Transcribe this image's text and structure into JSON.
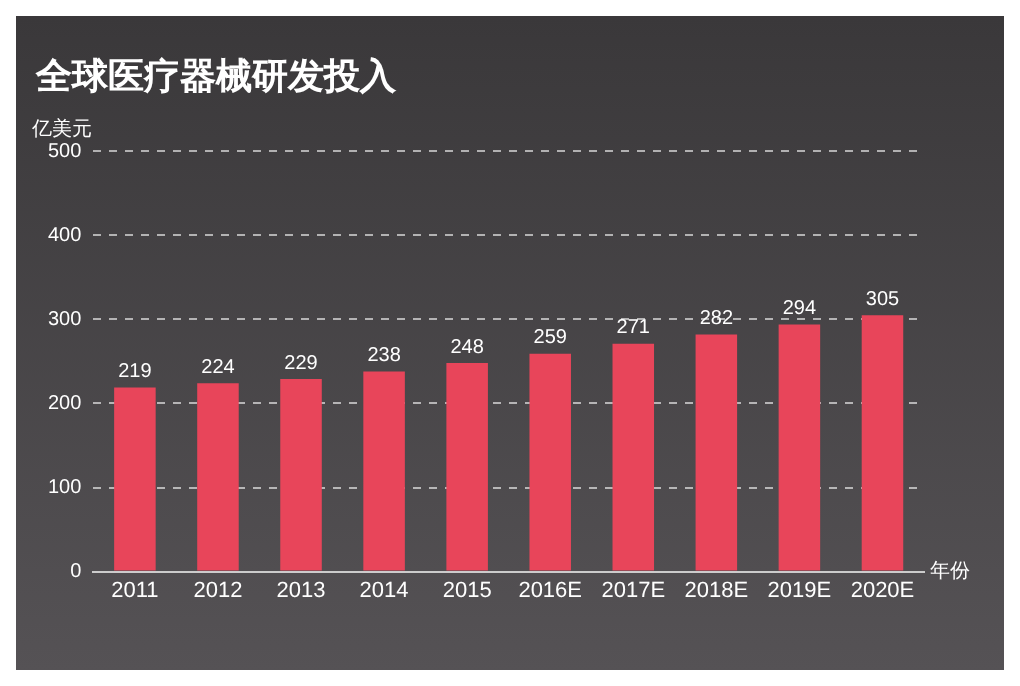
{
  "chart_data": {
    "type": "bar",
    "title": "全球医疗器械研发投入",
    "xlabel": "年份",
    "ylabel": "亿美元",
    "categories": [
      "2011",
      "2012",
      "2013",
      "2014",
      "2015",
      "2016E",
      "2017E",
      "2018E",
      "2019E",
      "2020E"
    ],
    "values": [
      219,
      224,
      229,
      238,
      248,
      259,
      271,
      282,
      294,
      305
    ],
    "color": "#e8455a",
    "data_labels": true,
    "ylim": [
      0,
      500
    ],
    "yticks": [
      0,
      100,
      200,
      300,
      400,
      500
    ],
    "grid": "y"
  }
}
